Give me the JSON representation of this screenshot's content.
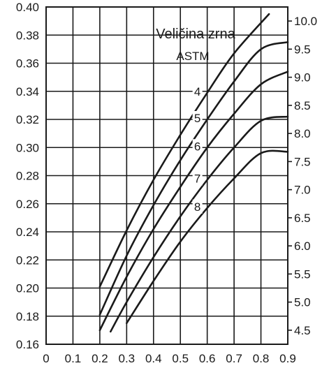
{
  "chart_data": {
    "type": "line",
    "title": "",
    "xlabel": "",
    "ylabel": "",
    "xlim": [
      0,
      0.9
    ],
    "ylim": [
      0.16,
      0.4
    ],
    "y2lim": [
      4.25,
      10.25
    ],
    "grid": true,
    "x_ticks": [
      "0",
      "0.1",
      "0.2",
      "0.3",
      "0.4",
      "0.5",
      "0.6",
      "0.7",
      "0.8",
      "0.9"
    ],
    "y_ticks": [
      "0.40",
      "0.38",
      "0.36",
      "0.34",
      "0.32",
      "0.30",
      "0.28",
      "0.26",
      "0.24",
      "0.22",
      "0.20",
      "0.18",
      "0.16"
    ],
    "y2_ticks": [
      "10.0",
      "9.5",
      "9.0",
      "8.5",
      "8.0",
      "7.5",
      "7.0",
      "6.5",
      "6.0",
      "5.5",
      "5.0",
      "4.5"
    ],
    "annotation_title": "Veličina zrna",
    "annotation_subtitle": "ASTM",
    "series": [
      {
        "label": "4",
        "points": [
          [
            0.2,
            0.201
          ],
          [
            0.3,
            0.241
          ],
          [
            0.4,
            0.277
          ],
          [
            0.5,
            0.309
          ],
          [
            0.6,
            0.339
          ],
          [
            0.7,
            0.367
          ],
          [
            0.83,
            0.395
          ]
        ]
      },
      {
        "label": "5",
        "points": [
          [
            0.2,
            0.181
          ],
          [
            0.3,
            0.223
          ],
          [
            0.4,
            0.259
          ],
          [
            0.5,
            0.291
          ],
          [
            0.6,
            0.32
          ],
          [
            0.7,
            0.347
          ],
          [
            0.8,
            0.37
          ],
          [
            0.9,
            0.375
          ]
        ]
      },
      {
        "label": "6",
        "points": [
          [
            0.2,
            0.17
          ],
          [
            0.3,
            0.208
          ],
          [
            0.4,
            0.242
          ],
          [
            0.5,
            0.272
          ],
          [
            0.6,
            0.3
          ],
          [
            0.7,
            0.324
          ],
          [
            0.8,
            0.345
          ],
          [
            0.9,
            0.354
          ]
        ]
      },
      {
        "label": "7",
        "points": [
          [
            0.24,
            0.169
          ],
          [
            0.3,
            0.19
          ],
          [
            0.4,
            0.222
          ],
          [
            0.5,
            0.251
          ],
          [
            0.6,
            0.277
          ],
          [
            0.7,
            0.3
          ],
          [
            0.8,
            0.319
          ],
          [
            0.9,
            0.322
          ]
        ]
      },
      {
        "label": "8",
        "points": [
          [
            0.3,
            0.175
          ],
          [
            0.4,
            0.205
          ],
          [
            0.5,
            0.233
          ],
          [
            0.6,
            0.257
          ],
          [
            0.7,
            0.278
          ],
          [
            0.8,
            0.296
          ],
          [
            0.9,
            0.297
          ]
        ]
      }
    ]
  }
}
